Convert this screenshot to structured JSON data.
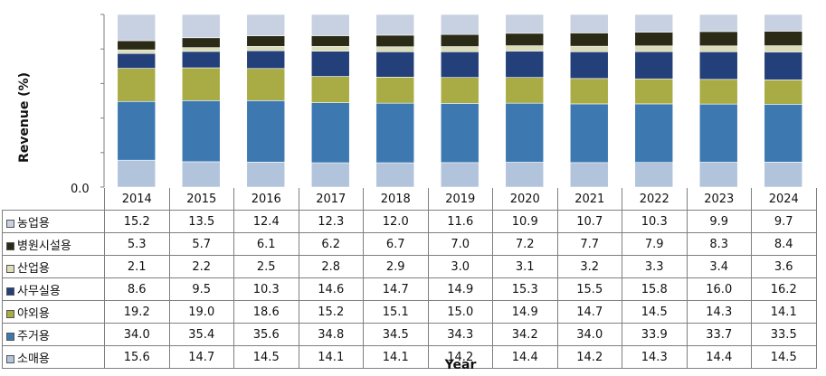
{
  "chart_data": {
    "type": "bar",
    "stacked": true,
    "normalized": true,
    "xlabel": "Year",
    "ylabel": "Revenue (%)",
    "yticks": [
      "0.0"
    ],
    "categories": [
      "2014",
      "2015",
      "2016",
      "2017",
      "2018",
      "2019",
      "2020",
      "2021",
      "2022",
      "2023",
      "2024"
    ],
    "series": [
      {
        "name": "농업용",
        "color": "#c7d1e1",
        "values": [
          15.2,
          13.5,
          12.4,
          12.3,
          12.0,
          11.6,
          10.9,
          10.7,
          10.3,
          9.9,
          9.7
        ]
      },
      {
        "name": "병원시설용",
        "color": "#2a2a17",
        "values": [
          5.3,
          5.7,
          6.1,
          6.2,
          6.7,
          7.0,
          7.2,
          7.7,
          7.9,
          8.3,
          8.4
        ]
      },
      {
        "name": "산업용",
        "color": "#dcdcb8",
        "values": [
          2.1,
          2.2,
          2.5,
          2.8,
          2.9,
          3.0,
          3.1,
          3.2,
          3.3,
          3.4,
          3.6
        ]
      },
      {
        "name": "사무실용",
        "color": "#23407b",
        "values": [
          8.6,
          9.5,
          10.3,
          14.6,
          14.7,
          14.9,
          15.3,
          15.5,
          15.8,
          16.0,
          16.2
        ]
      },
      {
        "name": "야외용",
        "color": "#a9ab44",
        "values": [
          19.2,
          19.0,
          18.6,
          15.2,
          15.1,
          15.0,
          14.9,
          14.7,
          14.5,
          14.3,
          14.1
        ]
      },
      {
        "name": "주거용",
        "color": "#3d79b0",
        "values": [
          34.0,
          35.4,
          35.6,
          34.8,
          34.5,
          34.3,
          34.2,
          34.0,
          33.9,
          33.7,
          33.5
        ]
      },
      {
        "name": "소매용",
        "color": "#b2c3dc",
        "values": [
          15.6,
          14.7,
          14.5,
          14.1,
          14.1,
          14.2,
          14.4,
          14.2,
          14.3,
          14.4,
          14.5
        ]
      }
    ],
    "table": {
      "rows": [
        {
          "label": "농업용",
          "values": [
            "15.2",
            "13.5",
            "12.4",
            "12.3",
            "12.0",
            "11.6",
            "10.9",
            "10.7",
            "10.3",
            "9.9",
            "9.7"
          ]
        },
        {
          "label": "병원시설용",
          "values": [
            "5.3",
            "5.7",
            "6.1",
            "6.2",
            "6.7",
            "7.0",
            "7.2",
            "7.7",
            "7.9",
            "8.3",
            "8.4"
          ]
        },
        {
          "label": "산업용",
          "values": [
            "2.1",
            "2.2",
            "2.5",
            "2.8",
            "2.9",
            "3.0",
            "3.1",
            "3.2",
            "3.3",
            "3.4",
            "3.6"
          ]
        },
        {
          "label": "사무실용",
          "values": [
            "8.6",
            "9.5",
            "10.3",
            "14.6",
            "14.7",
            "14.9",
            "15.3",
            "15.5",
            "15.8",
            "16.0",
            "16.2"
          ]
        },
        {
          "label": "야외용",
          "values": [
            "19.2",
            "19.0",
            "18.6",
            "15.2",
            "15.1",
            "15.0",
            "14.9",
            "14.7",
            "14.5",
            "14.3",
            "14.1"
          ]
        },
        {
          "label": "주거용",
          "values": [
            "34.0",
            "35.4",
            "35.6",
            "34.8",
            "34.5",
            "34.3",
            "34.2",
            "34.0",
            "33.9",
            "33.7",
            "33.5"
          ]
        },
        {
          "label": "소매용",
          "values": [
            "15.6",
            "14.7",
            "14.5",
            "14.1",
            "14.1",
            "14.2",
            "14.4",
            "14.2",
            "14.3",
            "14.4",
            "14.5"
          ]
        }
      ]
    },
    "grid": false,
    "legend": "in data table, left column"
  }
}
